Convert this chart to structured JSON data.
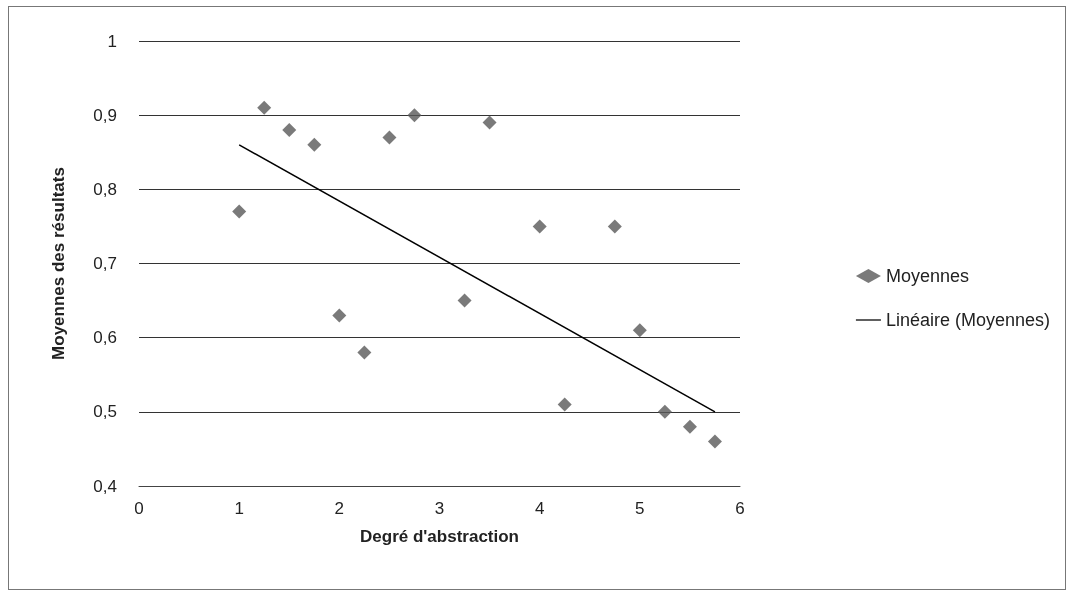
{
  "chart_data": {
    "type": "scatter",
    "xlabel": "Degré d'abstraction",
    "ylabel": "Moyennes des résultats",
    "xlim": [
      0,
      6
    ],
    "xticks": [
      0,
      1,
      2,
      3,
      4,
      5,
      6
    ],
    "ylim": [
      0.4,
      1
    ],
    "yticks": [
      {
        "value": 0.4,
        "label": "0,4"
      },
      {
        "value": 0.5,
        "label": "0,5"
      },
      {
        "value": 0.6,
        "label": "0,6"
      },
      {
        "value": 0.7,
        "label": "0,7"
      },
      {
        "value": 0.8,
        "label": "0,8"
      },
      {
        "value": 0.9,
        "label": "0,9"
      },
      {
        "value": 1,
        "label": "1"
      }
    ],
    "grid": "y",
    "legend": "right",
    "series": [
      {
        "name": "Moyennes",
        "marker": "diamond",
        "color": "#595959",
        "x": [
          1,
          1.25,
          1.5,
          1.75,
          2,
          2.25,
          2.5,
          2.75,
          3.25,
          3.5,
          4,
          4.25,
          4.75,
          5,
          5.25,
          5.5,
          5.75
        ],
        "values": [
          0.77,
          0.91,
          0.88,
          0.86,
          0.63,
          0.58,
          0.87,
          0.9,
          0.65,
          0.89,
          0.75,
          0.51,
          0.75,
          0.61,
          0.5,
          0.48,
          0.46
        ]
      },
      {
        "name": "Linéaire (Moyennes)",
        "type": "line",
        "marker": "none",
        "color": "#000000",
        "x": [
          1,
          5.75
        ],
        "values": [
          0.86,
          0.5
        ]
      }
    ]
  }
}
